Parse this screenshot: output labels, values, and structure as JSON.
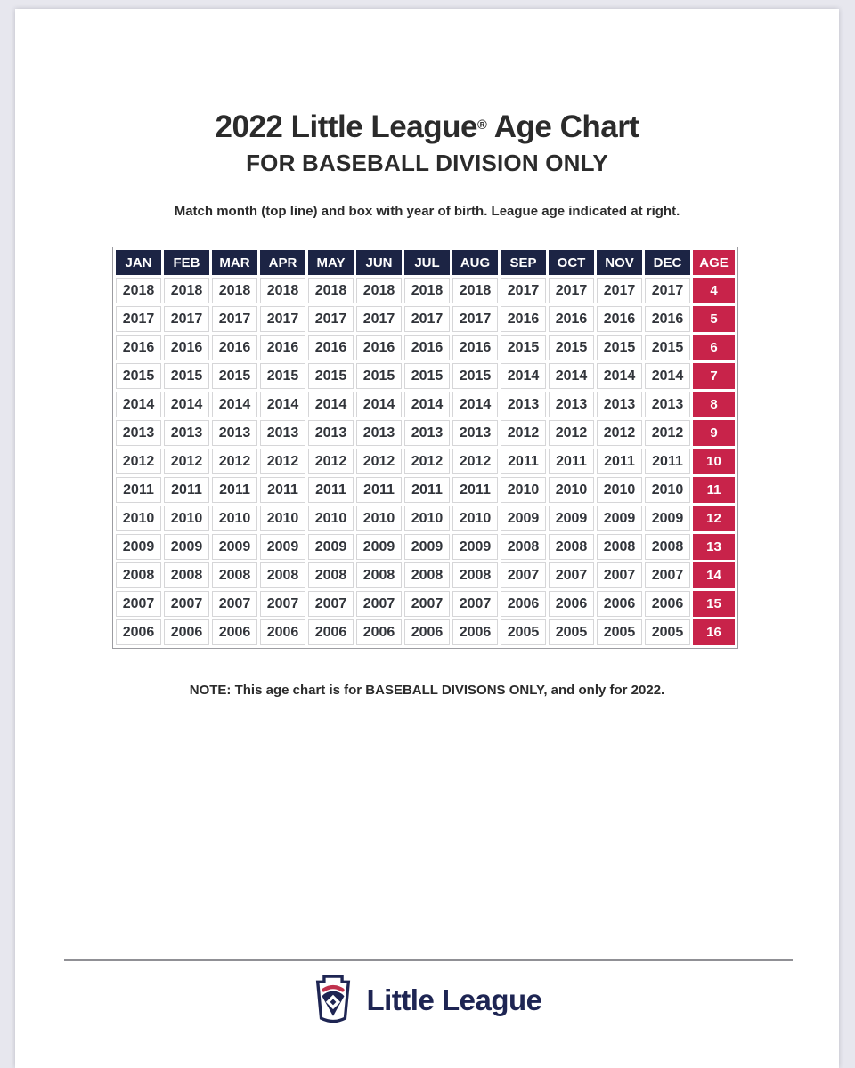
{
  "header": {
    "title_main": "2022 Little League",
    "title_reg": "®",
    "title_rest": " Age Chart",
    "subtitle": "FOR BASEBALL DIVISION ONLY",
    "instruction": "Match month (top line) and box with year of birth. League age indicated at right."
  },
  "chart_data": {
    "type": "table",
    "columns": [
      "JAN",
      "FEB",
      "MAR",
      "APR",
      "MAY",
      "JUN",
      "JUL",
      "AUG",
      "SEP",
      "OCT",
      "NOV",
      "DEC",
      "AGE"
    ],
    "rows": [
      [
        "2018",
        "2018",
        "2018",
        "2018",
        "2018",
        "2018",
        "2018",
        "2018",
        "2017",
        "2017",
        "2017",
        "2017",
        "4"
      ],
      [
        "2017",
        "2017",
        "2017",
        "2017",
        "2017",
        "2017",
        "2017",
        "2017",
        "2016",
        "2016",
        "2016",
        "2016",
        "5"
      ],
      [
        "2016",
        "2016",
        "2016",
        "2016",
        "2016",
        "2016",
        "2016",
        "2016",
        "2015",
        "2015",
        "2015",
        "2015",
        "6"
      ],
      [
        "2015",
        "2015",
        "2015",
        "2015",
        "2015",
        "2015",
        "2015",
        "2015",
        "2014",
        "2014",
        "2014",
        "2014",
        "7"
      ],
      [
        "2014",
        "2014",
        "2014",
        "2014",
        "2014",
        "2014",
        "2014",
        "2014",
        "2013",
        "2013",
        "2013",
        "2013",
        "8"
      ],
      [
        "2013",
        "2013",
        "2013",
        "2013",
        "2013",
        "2013",
        "2013",
        "2013",
        "2012",
        "2012",
        "2012",
        "2012",
        "9"
      ],
      [
        "2012",
        "2012",
        "2012",
        "2012",
        "2012",
        "2012",
        "2012",
        "2012",
        "2011",
        "2011",
        "2011",
        "2011",
        "10"
      ],
      [
        "2011",
        "2011",
        "2011",
        "2011",
        "2011",
        "2011",
        "2011",
        "2011",
        "2010",
        "2010",
        "2010",
        "2010",
        "11"
      ],
      [
        "2010",
        "2010",
        "2010",
        "2010",
        "2010",
        "2010",
        "2010",
        "2010",
        "2009",
        "2009",
        "2009",
        "2009",
        "12"
      ],
      [
        "2009",
        "2009",
        "2009",
        "2009",
        "2009",
        "2009",
        "2009",
        "2009",
        "2008",
        "2008",
        "2008",
        "2008",
        "13"
      ],
      [
        "2008",
        "2008",
        "2008",
        "2008",
        "2008",
        "2008",
        "2008",
        "2008",
        "2007",
        "2007",
        "2007",
        "2007",
        "14"
      ],
      [
        "2007",
        "2007",
        "2007",
        "2007",
        "2007",
        "2007",
        "2007",
        "2007",
        "2006",
        "2006",
        "2006",
        "2006",
        "15"
      ],
      [
        "2006",
        "2006",
        "2006",
        "2006",
        "2006",
        "2006",
        "2006",
        "2006",
        "2005",
        "2005",
        "2005",
        "2005",
        "16"
      ]
    ]
  },
  "note": "NOTE: This age chart is for BASEBALL DIVISONS ONLY, and only for 2022.",
  "footer": {
    "logo_text": "Little League"
  },
  "colors": {
    "navy": "#1C2444",
    "red": "#C8234A",
    "logo-navy": "#1E2553",
    "logo-red": "#C0314D"
  }
}
